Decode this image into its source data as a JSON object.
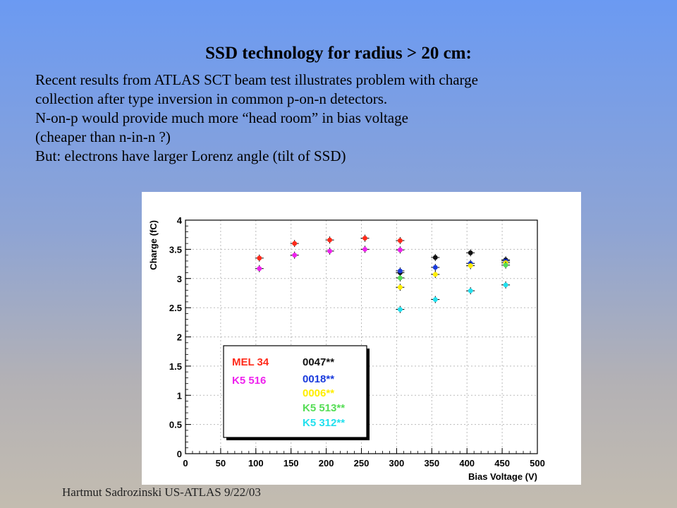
{
  "slide": {
    "title": "SSD technology for radius  > 20 cm:",
    "lines": [
      "Recent results from ATLAS SCT beam test illustrates problem with charge",
      "collection after type inversion in common p-on-n detectors.",
      "N-on-p would provide much more “head room” in bias voltage",
      "(cheaper than n-in-n ?)",
      "But: electrons have larger Lorenz angle (tilt of SSD)"
    ],
    "footer": "Hartmut Sadrozinski US-ATLAS 9/22/03"
  },
  "chart_data": {
    "type": "scatter",
    "xlabel": "Bias Voltage (V)",
    "ylabel": "Charge (fC)",
    "xlim": [
      0,
      500
    ],
    "ylim": [
      0,
      4
    ],
    "xticks": [
      0,
      50,
      100,
      150,
      200,
      250,
      300,
      350,
      400,
      450,
      500
    ],
    "yticks": [
      0,
      0.5,
      1,
      1.5,
      2,
      2.5,
      3,
      3.5,
      4
    ],
    "grid": "dashed",
    "legend_position": "lower-left",
    "series": [
      {
        "name": "MEL 34",
        "color": "#ff2a1a",
        "x": [
          105,
          155,
          205,
          255,
          305
        ],
        "y": [
          3.35,
          3.6,
          3.66,
          3.69,
          3.65
        ]
      },
      {
        "name": "K5 516",
        "color": "#ee22ee",
        "x": [
          105,
          155,
          205,
          255,
          305
        ],
        "y": [
          3.17,
          3.4,
          3.47,
          3.5,
          3.49
        ]
      },
      {
        "name": "0047**",
        "color": "#111111",
        "x": [
          305,
          355,
          405,
          455
        ],
        "y": [
          3.1,
          3.36,
          3.44,
          3.32
        ]
      },
      {
        "name": "0018**",
        "color": "#1a3bdc",
        "x": [
          305,
          355,
          405,
          455
        ],
        "y": [
          3.13,
          3.19,
          3.26,
          3.3
        ]
      },
      {
        "name": "0006**",
        "color": "#ffee00",
        "x": [
          305,
          355,
          405,
          455
        ],
        "y": [
          2.85,
          3.07,
          3.22,
          3.27
        ]
      },
      {
        "name": "K5 513**",
        "color": "#55dd55",
        "x": [
          305,
          455
        ],
        "y": [
          3.01,
          3.23
        ]
      },
      {
        "name": "K5 312**",
        "color": "#22e0ee",
        "x": [
          305,
          355,
          405,
          455
        ],
        "y": [
          2.47,
          2.64,
          2.79,
          2.89
        ]
      }
    ]
  }
}
